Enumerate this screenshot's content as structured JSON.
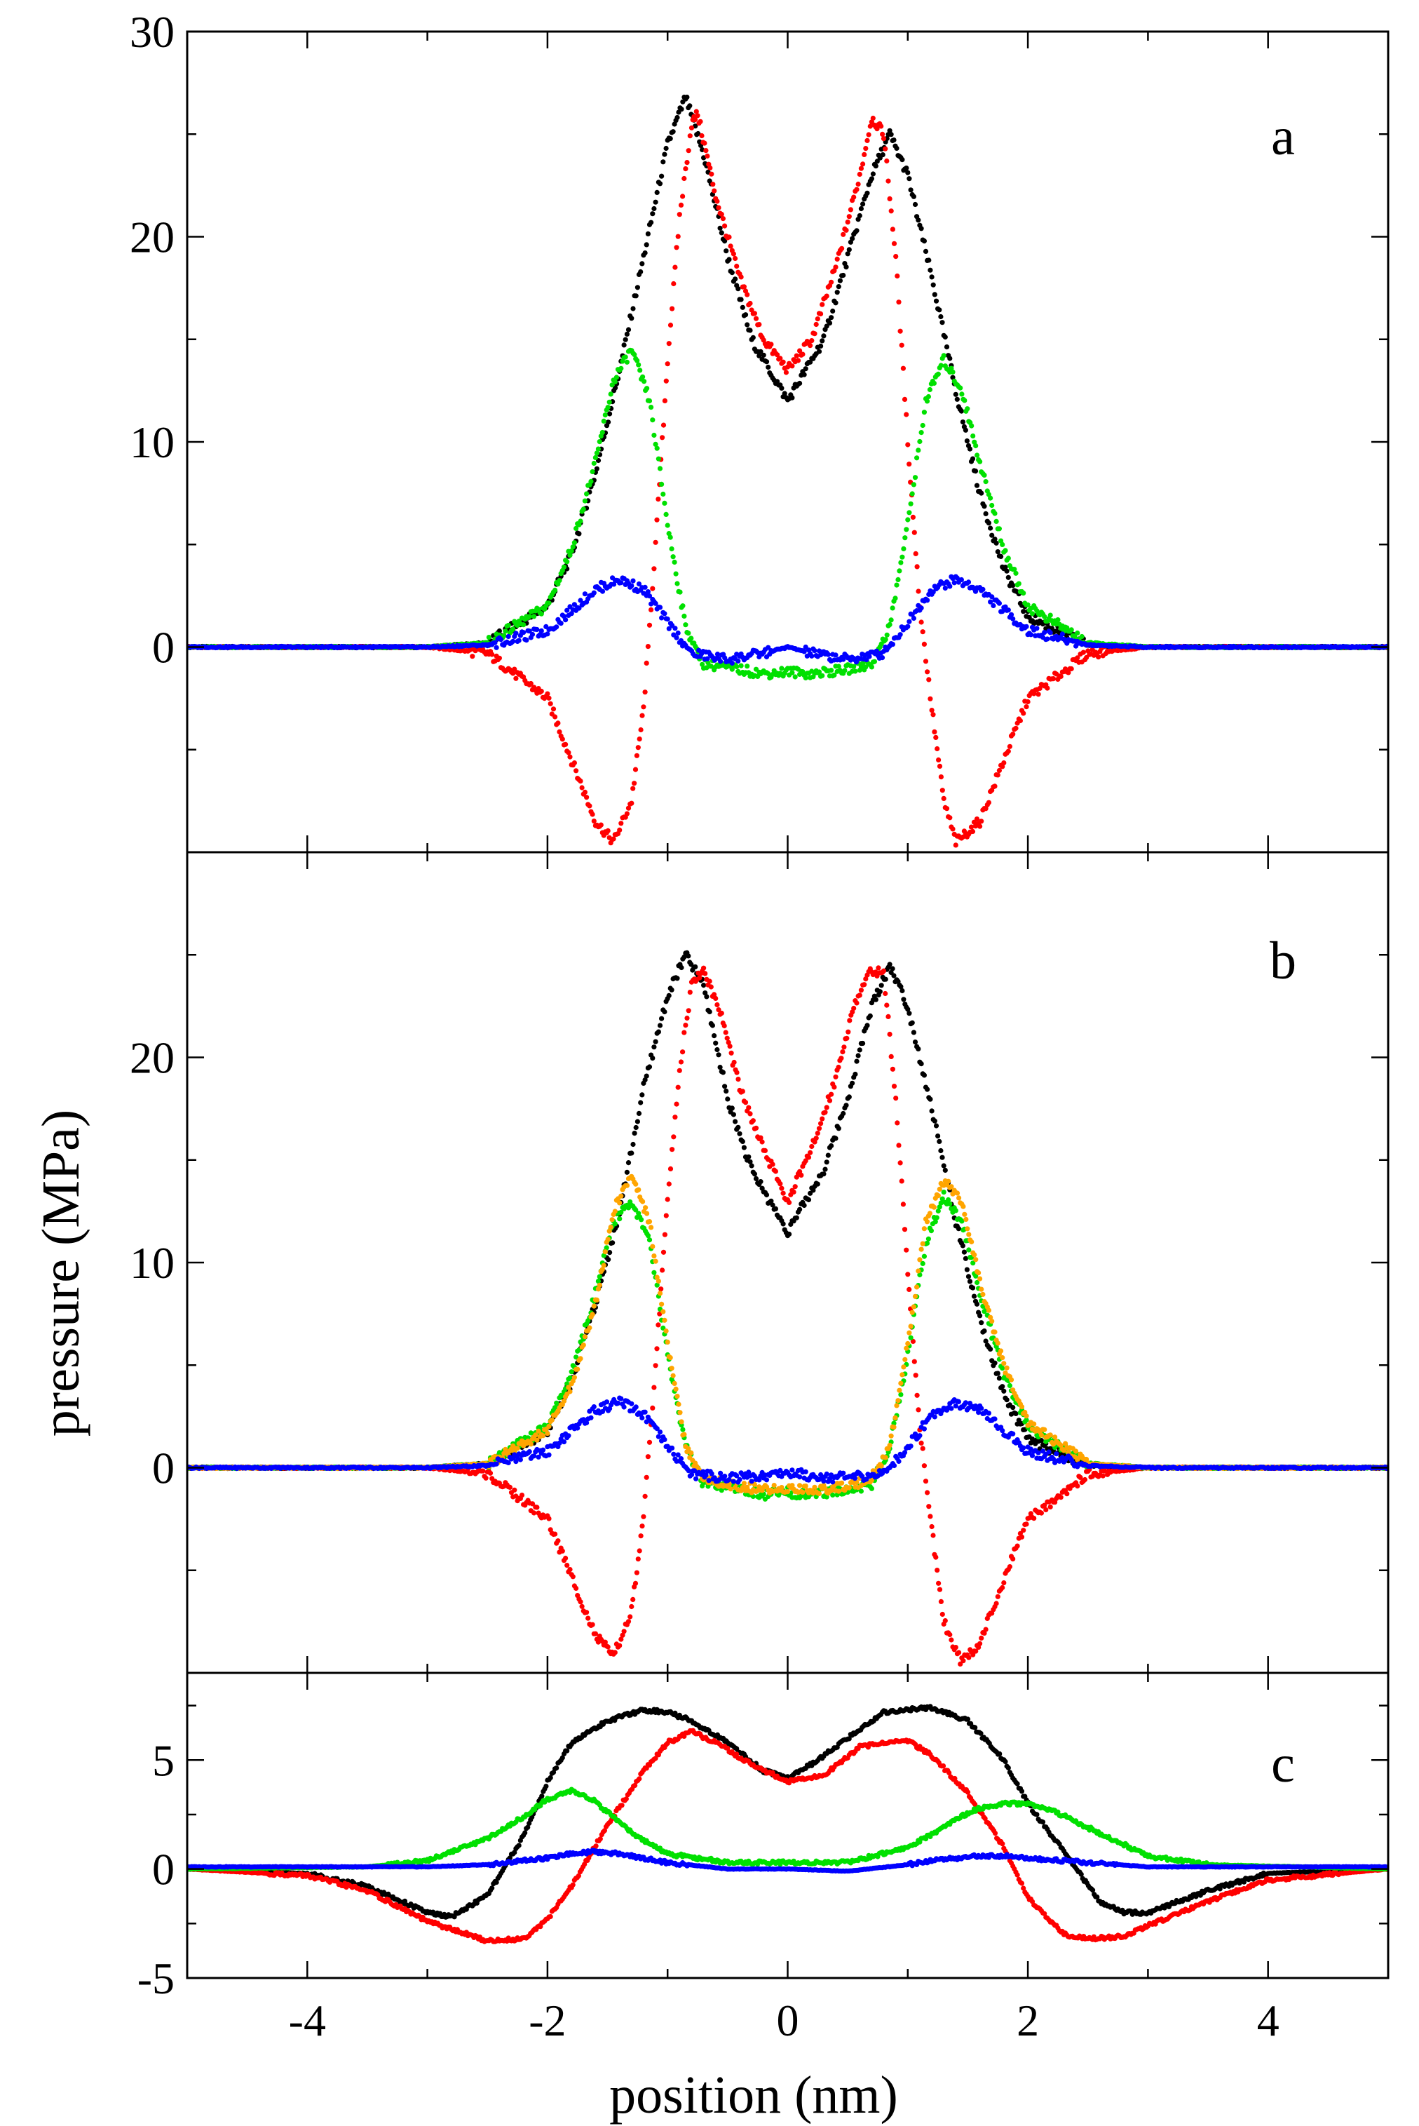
{
  "figure": {
    "xlabel": "position (nm)",
    "ylabel": "pressure (MPa)"
  },
  "chart_data": [
    {
      "panel": "a",
      "type": "scatter",
      "xlim": [
        -5,
        5
      ],
      "ylim": [
        -10,
        30
      ],
      "xticks": [
        -4,
        -2,
        0,
        2,
        4
      ],
      "yticks": [
        0,
        10,
        20,
        30
      ],
      "ytick_labels": [
        "0",
        "10",
        "20",
        "30"
      ],
      "x_tick_labels_shown": false,
      "grid": false,
      "series": [
        {
          "color": "#000000",
          "x": [
            -5,
            -3,
            -2.5,
            -2,
            -1.8,
            -1.6,
            -1.4,
            -1.2,
            -1,
            -0.85,
            -0.7,
            -0.5,
            -0.3,
            0,
            0.3,
            0.5,
            0.7,
            0.85,
            1,
            1.2,
            1.4,
            1.6,
            1.8,
            2,
            2.5,
            3,
            5
          ],
          "y": [
            0,
            0,
            0.2,
            2,
            4.5,
            8.5,
            13.5,
            19,
            24.5,
            26.8,
            24,
            19,
            15,
            12,
            15,
            19,
            23,
            25,
            23,
            18,
            12.5,
            7.5,
            3.8,
            1.5,
            0.1,
            0,
            0
          ]
        },
        {
          "color": "#ff0000",
          "x": [
            -5,
            -3,
            -2.5,
            -2,
            -1.8,
            -1.6,
            -1.45,
            -1.3,
            -1.2,
            -1.1,
            -1,
            -0.9,
            -0.8,
            -0.75,
            -0.6,
            -0.4,
            -0.2,
            0,
            0.2,
            0.4,
            0.6,
            0.7,
            0.8,
            0.9,
            1,
            1.1,
            1.2,
            1.3,
            1.4,
            1.6,
            1.8,
            2,
            2.5,
            3,
            5
          ],
          "y": [
            0,
            0,
            -0.3,
            -2.5,
            -5.5,
            -8.5,
            -9.5,
            -7.5,
            -3,
            5,
            14,
            21,
            25.5,
            26,
            22,
            18,
            15,
            13.5,
            15,
            18.5,
            23,
            25.8,
            25,
            19,
            10,
            2,
            -3,
            -7.5,
            -9.5,
            -8.5,
            -5.5,
            -2.5,
            -0.3,
            0,
            0
          ]
        },
        {
          "color": "#00e000",
          "x": [
            -5,
            -3,
            -2.5,
            -2,
            -1.8,
            -1.6,
            -1.45,
            -1.3,
            -1.15,
            -1,
            -0.85,
            -0.7,
            -0.5,
            -0.2,
            0,
            0.2,
            0.5,
            0.7,
            0.85,
            1,
            1.15,
            1.3,
            1.45,
            1.6,
            1.8,
            2,
            2.5,
            3,
            5
          ],
          "y": [
            0,
            0,
            0.2,
            2,
            4.8,
            9,
            13,
            14.5,
            12,
            6,
            1,
            -0.8,
            -1,
            -1.3,
            -1.2,
            -1.3,
            -1.1,
            -0.8,
            1,
            6,
            12,
            14,
            12.5,
            9,
            4.8,
            2,
            0.2,
            0,
            0
          ]
        },
        {
          "color": "#0000ff",
          "x": [
            -5,
            -3,
            -2.5,
            -2,
            -1.8,
            -1.6,
            -1.4,
            -1.2,
            -1,
            -0.8,
            -0.5,
            -0.2,
            0,
            0.2,
            0.5,
            0.8,
            1,
            1.2,
            1.4,
            1.6,
            1.8,
            2,
            2.5,
            3,
            5
          ],
          "y": [
            0,
            0,
            0.1,
            0.8,
            1.8,
            2.8,
            3.3,
            2.8,
            1.2,
            -0.3,
            -0.6,
            -0.3,
            0,
            -0.3,
            -0.6,
            -0.3,
            1.2,
            2.8,
            3.3,
            2.8,
            1.8,
            0.8,
            0.1,
            0,
            0
          ]
        }
      ]
    },
    {
      "panel": "b",
      "type": "scatter",
      "xlim": [
        -5,
        5
      ],
      "ylim": [
        -10,
        30
      ],
      "xticks": [
        -4,
        -2,
        0,
        2,
        4
      ],
      "yticks": [
        0,
        10,
        20
      ],
      "ytick_labels": [
        "0",
        "10",
        "20"
      ],
      "x_tick_labels_shown": false,
      "grid": false,
      "series": [
        {
          "color": "#000000",
          "x": [
            -5,
            -3,
            -2.5,
            -2,
            -1.8,
            -1.6,
            -1.4,
            -1.2,
            -1,
            -0.85,
            -0.7,
            -0.5,
            -0.3,
            0,
            0.3,
            0.5,
            0.7,
            0.85,
            1,
            1.2,
            1.4,
            1.6,
            1.8,
            2,
            2.5,
            3,
            5
          ],
          "y": [
            0,
            0,
            0.2,
            1.8,
            4.2,
            8,
            12.5,
            18.5,
            23,
            25,
            23.5,
            18,
            14.5,
            11.5,
            14.5,
            18,
            22.5,
            24.5,
            22.5,
            17.5,
            12,
            7.2,
            3.5,
            1.4,
            0.1,
            0,
            0
          ]
        },
        {
          "color": "#ff0000",
          "x": [
            -5,
            -3,
            -2.5,
            -2,
            -1.8,
            -1.6,
            -1.45,
            -1.3,
            -1.2,
            -1.1,
            -1,
            -0.9,
            -0.8,
            -0.7,
            -0.55,
            -0.4,
            -0.2,
            0,
            0.2,
            0.4,
            0.55,
            0.7,
            0.8,
            0.9,
            1,
            1.1,
            1.2,
            1.3,
            1.45,
            1.6,
            1.8,
            2,
            2.5,
            3,
            5
          ],
          "y": [
            0,
            0,
            -0.3,
            -2.5,
            -5.3,
            -8.2,
            -9.2,
            -7,
            -2.5,
            5,
            13,
            19.5,
            23.5,
            24.3,
            22,
            18.5,
            15.5,
            13,
            15.5,
            19,
            22.5,
            24.3,
            24,
            18,
            9.5,
            2,
            -3,
            -7.5,
            -9.5,
            -8.5,
            -5.5,
            -2.5,
            -0.3,
            0,
            0
          ]
        },
        {
          "color": "#00e000",
          "x": [
            -5,
            -3,
            -2.5,
            -2,
            -1.8,
            -1.6,
            -1.45,
            -1.3,
            -1.15,
            -1,
            -0.85,
            -0.7,
            -0.5,
            -0.2,
            0,
            0.2,
            0.5,
            0.7,
            0.85,
            1,
            1.15,
            1.3,
            1.45,
            1.6,
            1.8,
            2,
            2.5,
            3,
            5
          ],
          "y": [
            0,
            0,
            0.2,
            2,
            4.5,
            8.5,
            12,
            13,
            11,
            5.5,
            1,
            -0.8,
            -1,
            -1.3,
            -1.2,
            -1.3,
            -1.1,
            -0.8,
            1,
            5.5,
            11,
            13.2,
            12,
            8.5,
            4.5,
            2,
            0.2,
            0,
            0
          ]
        },
        {
          "color": "#ffa500",
          "x": [
            -5,
            -3,
            -2.5,
            -2,
            -1.8,
            -1.6,
            -1.45,
            -1.3,
            -1.15,
            -1,
            -0.85,
            -0.7,
            -0.5,
            -0.2,
            0,
            0.2,
            0.5,
            0.7,
            0.85,
            1,
            1.15,
            1.3,
            1.45,
            1.6,
            1.8,
            2,
            2.5,
            3,
            5
          ],
          "y": [
            0,
            0,
            0.2,
            1.8,
            4,
            8,
            12.5,
            14.3,
            12,
            6,
            1,
            -0.5,
            -0.8,
            -1.1,
            -1,
            -1.1,
            -0.9,
            -0.5,
            1,
            6,
            12,
            14,
            13,
            9,
            5,
            2.2,
            0.2,
            0,
            0
          ]
        },
        {
          "color": "#0000ff",
          "x": [
            -5,
            -3,
            -2.5,
            -2,
            -1.8,
            -1.6,
            -1.4,
            -1.2,
            -1,
            -0.8,
            -0.5,
            -0.2,
            0,
            0.2,
            0.5,
            0.8,
            1,
            1.2,
            1.4,
            1.6,
            1.8,
            2,
            2.5,
            3,
            5
          ],
          "y": [
            0,
            0,
            0.1,
            0.8,
            1.8,
            2.8,
            3.2,
            2.6,
            1,
            -0.3,
            -0.5,
            -0.4,
            -0.2,
            -0.4,
            -0.5,
            -0.3,
            1,
            2.6,
            3.2,
            2.8,
            1.8,
            0.8,
            0.1,
            0,
            0
          ]
        }
      ]
    },
    {
      "panel": "c",
      "type": "scatter",
      "xlim": [
        -5,
        5
      ],
      "ylim": [
        -5,
        9
      ],
      "xticks": [
        -4,
        -2,
        0,
        2,
        4
      ],
      "xtick_labels": [
        "-4",
        "-2",
        "0",
        "2",
        "4"
      ],
      "yticks": [
        -5,
        0,
        5
      ],
      "ytick_labels": [
        "-5",
        "0",
        "5"
      ],
      "x_tick_labels_shown": true,
      "grid": false,
      "series": [
        {
          "color": "#000000",
          "x": [
            -5,
            -4,
            -3.5,
            -3,
            -2.8,
            -2.5,
            -2.2,
            -2,
            -1.8,
            -1.5,
            -1.2,
            -1,
            -0.8,
            -0.5,
            -0.2,
            0,
            0.2,
            0.5,
            0.8,
            1,
            1.2,
            1.5,
            1.8,
            2,
            2.3,
            2.6,
            2.8,
            3,
            3.5,
            4,
            5
          ],
          "y": [
            0,
            -0.2,
            -0.8,
            -2,
            -2.2,
            -1.2,
            1.5,
            4,
            5.8,
            6.8,
            7.3,
            7.2,
            6.8,
            5.8,
            4.5,
            4.2,
            4.8,
            6,
            7.2,
            7.3,
            7.4,
            6.8,
            5,
            3,
            0.8,
            -1.5,
            -2,
            -2,
            -1,
            -0.2,
            0
          ]
        },
        {
          "color": "#ff0000",
          "x": [
            -5,
            -4,
            -3.5,
            -3,
            -2.5,
            -2.2,
            -2,
            -1.8,
            -1.5,
            -1.2,
            -1,
            -0.8,
            -0.6,
            -0.3,
            0,
            0.3,
            0.6,
            0.8,
            1,
            1.2,
            1.5,
            1.8,
            2,
            2.3,
            2.5,
            2.8,
            3,
            3.5,
            4,
            5
          ],
          "y": [
            0,
            -0.3,
            -1,
            -2.4,
            -3.3,
            -3.2,
            -2.3,
            -0.8,
            2,
            4.5,
            5.8,
            6.3,
            5.8,
            4.8,
            4,
            4.3,
            5.6,
            5.8,
            5.9,
            5.2,
            3.5,
            1,
            -1.3,
            -3,
            -3.2,
            -3.1,
            -2.6,
            -1.5,
            -0.5,
            0
          ]
        },
        {
          "color": "#00e000",
          "x": [
            -5,
            -3.5,
            -3,
            -2.5,
            -2.2,
            -2,
            -1.8,
            -1.6,
            -1.4,
            -1.2,
            -1,
            -0.5,
            0,
            0.5,
            1,
            1.2,
            1.4,
            1.6,
            1.8,
            2,
            2.2,
            2.5,
            3,
            3.5,
            5
          ],
          "y": [
            0,
            0.1,
            0.4,
            1.4,
            2.4,
            3.2,
            3.6,
            3.1,
            2.1,
            1.3,
            0.7,
            0.3,
            0.3,
            0.3,
            1,
            1.6,
            2.3,
            2.8,
            3,
            3,
            2.7,
            1.9,
            0.6,
            0.2,
            0
          ]
        },
        {
          "color": "#0000ff",
          "x": [
            -5,
            -3,
            -2.5,
            -2,
            -1.8,
            -1.6,
            -1.4,
            -1.2,
            -1,
            -0.5,
            0,
            0.5,
            1,
            1.2,
            1.4,
            1.6,
            1.8,
            2,
            2.5,
            3,
            5
          ],
          "y": [
            0.1,
            0.1,
            0.2,
            0.5,
            0.7,
            0.8,
            0.7,
            0.5,
            0.3,
            0,
            0,
            -0.1,
            0.2,
            0.4,
            0.5,
            0.6,
            0.6,
            0.5,
            0.3,
            0.1,
            0.1
          ]
        }
      ]
    }
  ]
}
